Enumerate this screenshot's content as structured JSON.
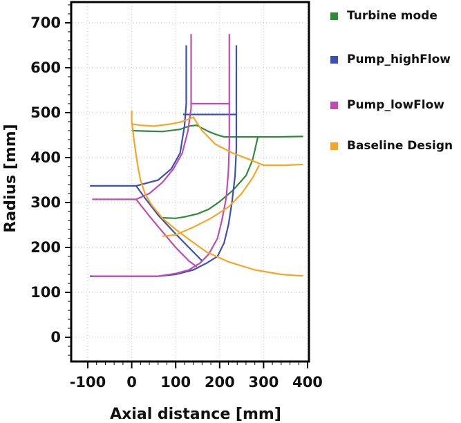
{
  "chart_data": {
    "type": "line",
    "xlabel": "Axial distance [mm]",
    "ylabel": "Radius [mm]",
    "xlim": [
      -100,
      400
    ],
    "ylim": [
      -50,
      750
    ],
    "xticks": [
      -100,
      0,
      100,
      200,
      300,
      400
    ],
    "yticks": [
      0,
      100,
      200,
      300,
      400,
      500,
      600,
      700
    ],
    "grid": true,
    "legend_position": "right",
    "series": [
      {
        "name": "Turbine mode",
        "color": "#2e8b3a",
        "segments": [
          [
            [
              0,
              460
            ],
            [
              30,
              459
            ],
            [
              70,
              458
            ],
            [
              110,
              463
            ],
            [
              130,
              470
            ],
            [
              147,
              472
            ],
            [
              175,
              458
            ],
            [
              190,
              452
            ],
            [
              210,
              446
            ],
            [
              240,
              446
            ],
            [
              290,
              446
            ],
            [
              330,
              446
            ],
            [
              390,
              447
            ]
          ],
          [
            [
              70,
              266
            ],
            [
              100,
              265
            ],
            [
              120,
              268
            ],
            [
              150,
              275
            ],
            [
              175,
              285
            ],
            [
              200,
              302
            ],
            [
              230,
              327
            ],
            [
              260,
              360
            ],
            [
              275,
              395
            ],
            [
              287,
              446
            ]
          ]
        ]
      },
      {
        "name": "Pump_highFlow",
        "color": "#3a50b8",
        "segments": [
          [
            [
              -95,
              337
            ],
            [
              -50,
              337
            ],
            [
              0,
              337
            ],
            [
              10,
              337
            ],
            [
              60,
              350
            ],
            [
              90,
              375
            ],
            [
              110,
              410
            ],
            [
              120,
              470
            ],
            [
              124,
              520
            ],
            [
              124,
              650
            ]
          ],
          [
            [
              -95,
              136
            ],
            [
              -50,
              136
            ],
            [
              0,
              136
            ],
            [
              60,
              136
            ],
            [
              100,
              140
            ],
            [
              140,
              150
            ],
            [
              170,
              165
            ],
            [
              195,
              180
            ],
            [
              210,
              210
            ],
            [
              220,
              250
            ],
            [
              228,
              300
            ],
            [
              235,
              360
            ],
            [
              238,
              420
            ],
            [
              238,
              500
            ],
            [
              238,
              650
            ]
          ],
          [
            [
              10,
              337
            ],
            [
              30,
              310
            ],
            [
              60,
              272
            ],
            [
              100,
              230
            ],
            [
              130,
              200
            ],
            [
              160,
              170
            ]
          ],
          [
            [
              117,
              496
            ],
            [
              238,
              496
            ]
          ]
        ]
      },
      {
        "name": "Pump_lowFlow",
        "color": "#c24bb3",
        "segments": [
          [
            [
              -90,
              307
            ],
            [
              -50,
              307
            ],
            [
              10,
              307
            ],
            [
              40,
              320
            ],
            [
              70,
              345
            ],
            [
              95,
              375
            ],
            [
              115,
              410
            ],
            [
              128,
              460
            ],
            [
              135,
              510
            ],
            [
              135,
              675
            ]
          ],
          [
            [
              -90,
              136
            ],
            [
              -50,
              136
            ],
            [
              60,
              136
            ],
            [
              100,
              142
            ],
            [
              130,
              150
            ],
            [
              155,
              165
            ],
            [
              175,
              185
            ],
            [
              195,
              220
            ],
            [
              205,
              260
            ],
            [
              215,
              310
            ],
            [
              220,
              370
            ],
            [
              222,
              430
            ],
            [
              222,
              500
            ],
            [
              222,
              675
            ]
          ],
          [
            [
              10,
              307
            ],
            [
              40,
              270
            ],
            [
              70,
              235
            ],
            [
              100,
              200
            ],
            [
              130,
              170
            ],
            [
              148,
              157
            ]
          ],
          [
            [
              135,
              520
            ],
            [
              222,
              520
            ]
          ]
        ]
      },
      {
        "name": "Baseline Design",
        "color": "#f5a623",
        "segments": [
          [
            [
              0,
              505
            ],
            [
              0,
              480
            ],
            [
              2,
              465
            ],
            [
              5,
              440
            ],
            [
              10,
              405
            ],
            [
              15,
              375
            ],
            [
              20,
              350
            ],
            [
              30,
              320
            ],
            [
              45,
              295
            ],
            [
              70,
              265
            ],
            [
              100,
              240
            ],
            [
              130,
              218
            ],
            [
              170,
              190
            ],
            [
              220,
              168
            ],
            [
              280,
              150
            ],
            [
              340,
              140
            ],
            [
              380,
              137
            ],
            [
              390,
              137
            ]
          ],
          [
            [
              0,
              475
            ],
            [
              20,
              472
            ],
            [
              50,
              470
            ],
            [
              90,
              475
            ],
            [
              115,
              480
            ],
            [
              140,
              490
            ],
            [
              160,
              460
            ],
            [
              190,
              430
            ],
            [
              230,
              410
            ],
            [
              270,
              395
            ],
            [
              300,
              383
            ],
            [
              350,
              383
            ],
            [
              390,
              385
            ]
          ],
          [
            [
              70,
              225
            ],
            [
              100,
              228
            ],
            [
              140,
              245
            ],
            [
              180,
              265
            ],
            [
              220,
              290
            ],
            [
              250,
              320
            ],
            [
              275,
              355
            ],
            [
              290,
              383
            ]
          ]
        ]
      }
    ]
  }
}
